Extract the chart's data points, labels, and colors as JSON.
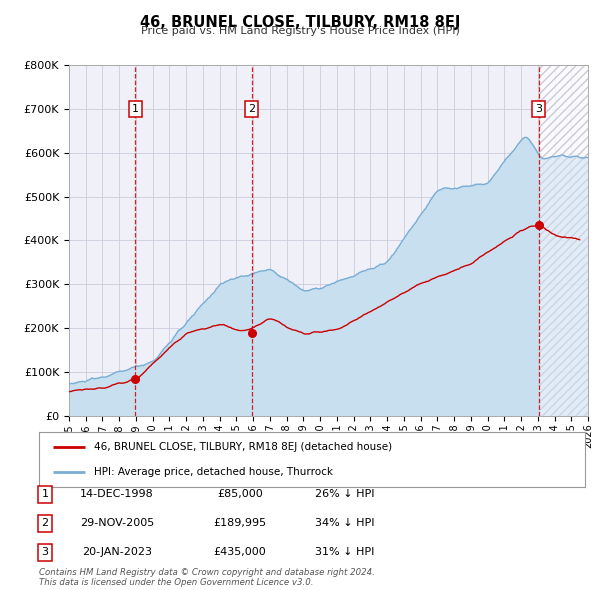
{
  "title": "46, BRUNEL CLOSE, TILBURY, RM18 8EJ",
  "subtitle": "Price paid vs. HM Land Registry's House Price Index (HPI)",
  "xlim": [
    1995,
    2026
  ],
  "ylim": [
    0,
    800000
  ],
  "yticks": [
    0,
    100000,
    200000,
    300000,
    400000,
    500000,
    600000,
    700000,
    800000
  ],
  "ytick_labels": [
    "£0",
    "£100K",
    "£200K",
    "£300K",
    "£400K",
    "£500K",
    "£600K",
    "£700K",
    "£800K"
  ],
  "xtick_years": [
    1995,
    1996,
    1997,
    1998,
    1999,
    2000,
    2001,
    2002,
    2003,
    2004,
    2005,
    2006,
    2007,
    2008,
    2009,
    2010,
    2011,
    2012,
    2013,
    2014,
    2015,
    2016,
    2017,
    2018,
    2019,
    2020,
    2021,
    2022,
    2023,
    2024,
    2025,
    2026
  ],
  "price_paid_color": "#cc0000",
  "hpi_color": "#7aadd4",
  "hpi_fill_color": "#c8dff0",
  "background_color": "#ffffff",
  "plot_bg_color": "#f0f0f8",
  "grid_color": "#ccccdd",
  "sale_dates": [
    1998.96,
    2005.91,
    2023.05
  ],
  "sale_prices": [
    85000,
    189995,
    435000
  ],
  "sale_labels": [
    "1",
    "2",
    "3"
  ],
  "vline_color": "#cc0000",
  "marker_color": "#cc0000",
  "legend_entries": [
    "46, BRUNEL CLOSE, TILBURY, RM18 8EJ (detached house)",
    "HPI: Average price, detached house, Thurrock"
  ],
  "table_rows": [
    [
      "1",
      "14-DEC-1998",
      "£85,000",
      "26% ↓ HPI"
    ],
    [
      "2",
      "29-NOV-2005",
      "£189,995",
      "34% ↓ HPI"
    ],
    [
      "3",
      "20-JAN-2023",
      "£435,000",
      "31% ↓ HPI"
    ]
  ],
  "footnote": "Contains HM Land Registry data © Crown copyright and database right 2024.\nThis data is licensed under the Open Government Licence v3.0.",
  "hatched_region_start": 2023.05,
  "hatched_region_end": 2026
}
